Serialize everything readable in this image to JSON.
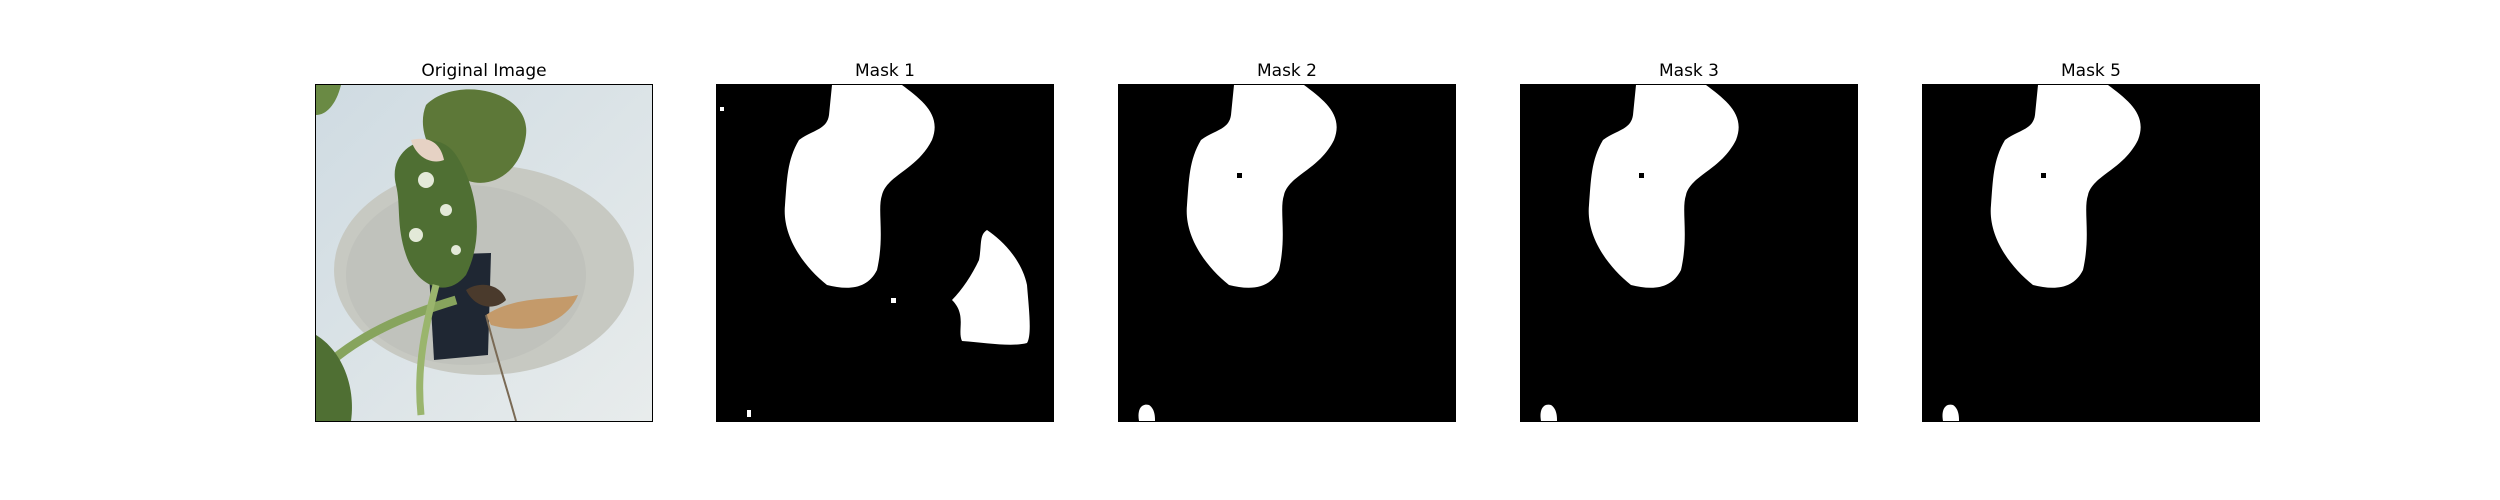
{
  "figure": {
    "panels": [
      {
        "title": "Original Image"
      },
      {
        "title": "Mask 1"
      },
      {
        "title": "Mask 2"
      },
      {
        "title": "Mask 3"
      },
      {
        "title": "Mask 5"
      }
    ]
  },
  "colors": {
    "mask_background": "#000000",
    "mask_foreground": "#ffffff",
    "wall": "#dfe6ea",
    "leaf": "#5f7d3a",
    "disc": "#c9cbc4"
  }
}
